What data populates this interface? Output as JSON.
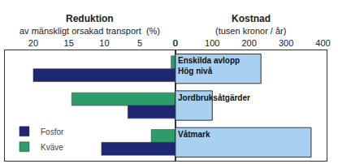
{
  "chart_data": [
    {
      "type": "bar",
      "orientation": "horizontal",
      "title": "Reduktion",
      "xlabel": "av mänskligt orsakad transport  (%)",
      "categories": [
        "Enskilda avlopp\nHög nivå",
        "Jordbruksåtgärder",
        "Våtmark"
      ],
      "series": [
        {
          "name": "Kväve",
          "color": "#2e9b6a",
          "values": [
            0.6,
            14.6,
            3.4
          ]
        },
        {
          "name": "Fosfor",
          "color": "#1e2870",
          "values": [
            20.0,
            6.7,
            10.4
          ]
        }
      ],
      "xlim": [
        24,
        0
      ],
      "xticks": [
        20,
        15,
        10,
        5,
        0
      ],
      "grid": false,
      "legend": "lower left"
    },
    {
      "type": "bar",
      "orientation": "horizontal",
      "title": "Kostnad",
      "xlabel": "(tusen kronor / år)",
      "categories": [
        "Enskilda avlopp\nHög nivå",
        "Jordbruksåtgärder",
        "Våtmark"
      ],
      "values": [
        232,
        100,
        368
      ],
      "color": "#a8d0f0",
      "xlim": [
        0,
        410
      ],
      "xticks": [
        0,
        100,
        200,
        300,
        400
      ],
      "grid": false
    }
  ]
}
